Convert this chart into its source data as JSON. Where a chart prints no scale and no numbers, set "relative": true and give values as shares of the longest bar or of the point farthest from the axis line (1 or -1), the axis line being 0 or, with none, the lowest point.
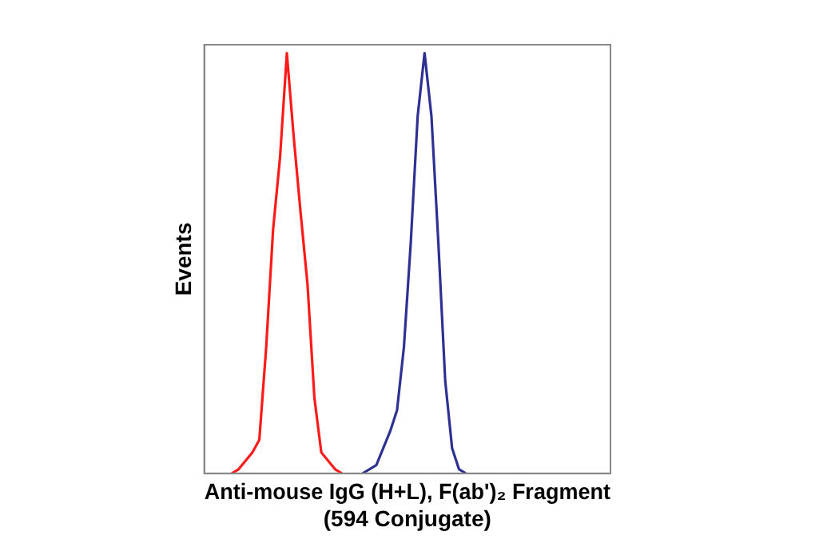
{
  "chart_data": {
    "type": "line",
    "relative": true,
    "xlabel": "Anti-mouse IgG (H+L), F(ab')₂ Fragment\n(594 Conjugate)",
    "ylabel": "Events",
    "grid": false,
    "legend": false,
    "marker": "none",
    "line_style": "solid",
    "categories": [
      null,
      null,
      null,
      null,
      null,
      null,
      null,
      null,
      null,
      null,
      null,
      null,
      null,
      null,
      null,
      null,
      null,
      null,
      null,
      null,
      null,
      null,
      null,
      null,
      null,
      null,
      null,
      null,
      null,
      null,
      null,
      null,
      null,
      null,
      null,
      null,
      null,
      null,
      null,
      null,
      null,
      null,
      null,
      null,
      null,
      null,
      null,
      null,
      null,
      null,
      null,
      null,
      null,
      null,
      null,
      null,
      null,
      null,
      null,
      null
    ],
    "series": [
      {
        "color": "#ff1a1a",
        "values": [
          null,
          null,
          null,
          null,
          0,
          0.01,
          0.03,
          0.05,
          0.08,
          0.3,
          0.58,
          0.75,
          1,
          0.8,
          0.62,
          0.45,
          0.18,
          0.05,
          0.03,
          0.01,
          0,
          null,
          null,
          null,
          null,
          null,
          null,
          null,
          null,
          null,
          null,
          null,
          null,
          null,
          null,
          null,
          null,
          null,
          null,
          null,
          null,
          null,
          null,
          null,
          null,
          null,
          null,
          null,
          null,
          null,
          null,
          null,
          null,
          null,
          null,
          null,
          null,
          null,
          null,
          null
        ]
      },
      {
        "color": "#2e3192",
        "values": [
          null,
          null,
          null,
          null,
          null,
          null,
          null,
          null,
          null,
          null,
          null,
          null,
          null,
          null,
          null,
          null,
          null,
          null,
          null,
          null,
          null,
          null,
          null,
          0,
          0.01,
          0.02,
          0.06,
          0.1,
          0.15,
          0.3,
          0.55,
          0.85,
          1,
          0.85,
          0.55,
          0.22,
          0.06,
          0.01,
          0,
          null,
          null,
          null,
          null,
          null,
          null,
          null,
          null,
          null,
          null,
          null,
          null,
          null,
          null,
          null,
          null,
          null,
          null,
          null,
          null,
          null
        ]
      }
    ]
  }
}
